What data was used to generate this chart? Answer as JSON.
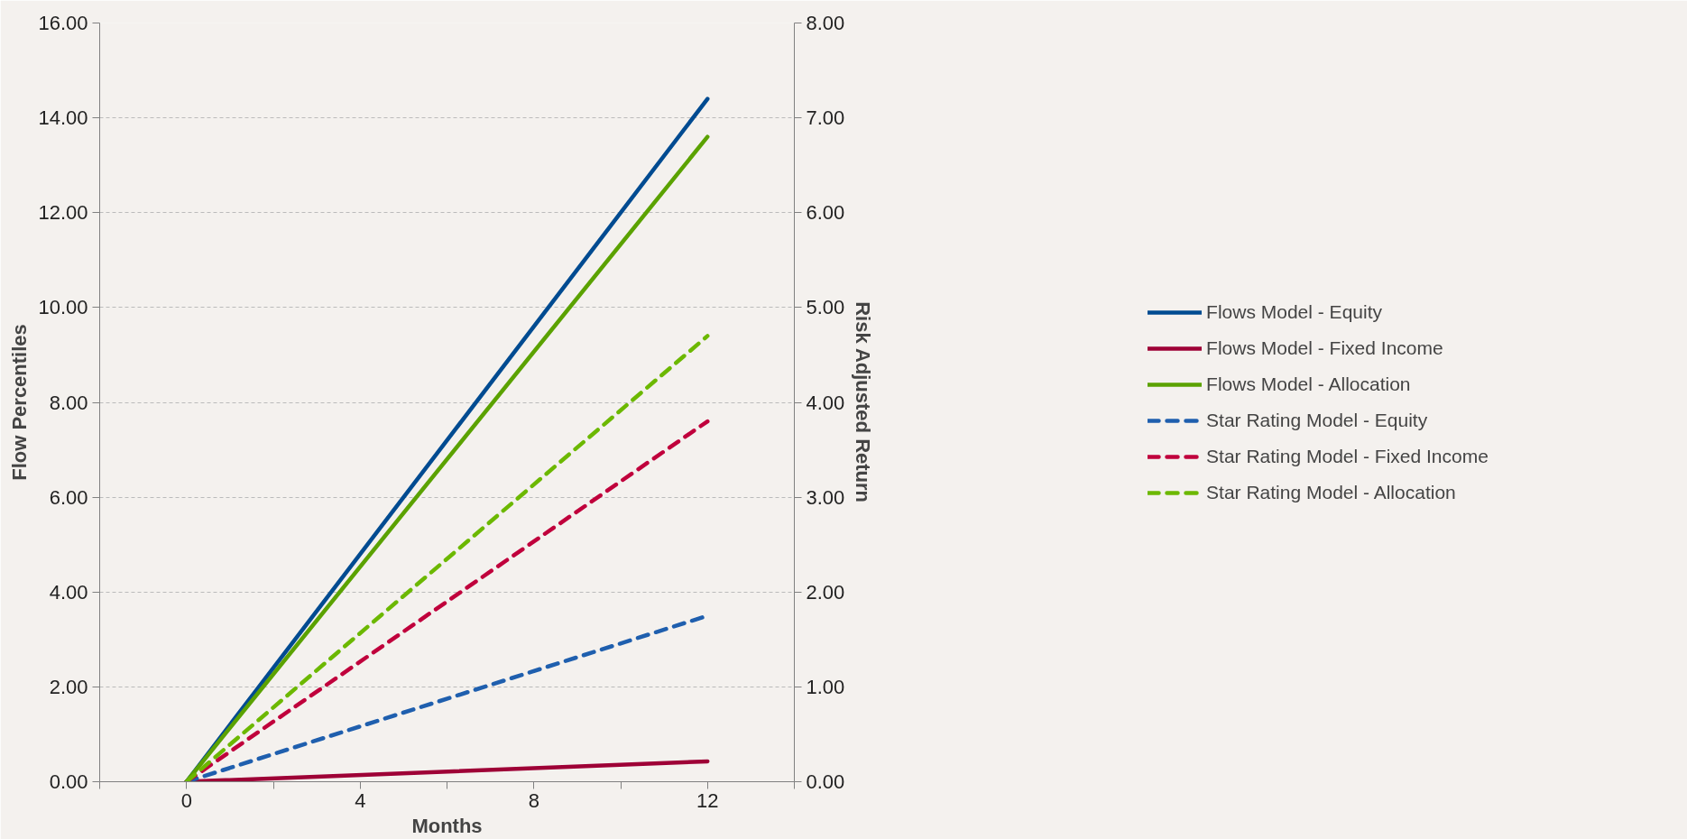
{
  "chart_data": {
    "type": "line",
    "xlabel": "Months",
    "ylabel": "Flow Percentiles",
    "y2label": "Risk Adjusted Return",
    "xlim": [
      -2,
      14
    ],
    "xticks": [
      {
        "value": -2,
        "label": null
      },
      0,
      {
        "value": 2,
        "label": null
      },
      4,
      {
        "value": 6,
        "label": null
      },
      8,
      {
        "value": 10,
        "label": null
      },
      12,
      {
        "value": 14,
        "label": null
      }
    ],
    "ylim": [
      0,
      16
    ],
    "yticks": [
      {
        "value": 0,
        "label": "0.00"
      },
      {
        "value": 2,
        "label": "2.00"
      },
      {
        "value": 4,
        "label": "4.00"
      },
      {
        "value": 6,
        "label": "6.00"
      },
      {
        "value": 8,
        "label": "8.00"
      },
      {
        "value": 10,
        "label": "10.00"
      },
      {
        "value": 12,
        "label": "12.00"
      },
      {
        "value": 14,
        "label": "14.00"
      },
      {
        "value": 16,
        "label": "16.00"
      }
    ],
    "y2lim": [
      0,
      8
    ],
    "y2ticks": [
      {
        "value": 0,
        "label": "0.00"
      },
      {
        "value": 1,
        "label": "1.00"
      },
      {
        "value": 2,
        "label": "2.00"
      },
      {
        "value": 3,
        "label": "3.00"
      },
      {
        "value": 4,
        "label": "4.00"
      },
      {
        "value": 5,
        "label": "5.00"
      },
      {
        "value": 6,
        "label": "6.00"
      },
      {
        "value": 7,
        "label": "7.00"
      },
      {
        "value": 8,
        "label": "8.00"
      }
    ],
    "x": [
      0,
      12
    ],
    "grid": "y",
    "legend": "right",
    "marker": "none",
    "series": [
      {
        "name": "Flows Model - Equity",
        "color": "#004b91",
        "values": [
          0,
          14.4
        ],
        "line_style": "solid"
      },
      {
        "name": "Flows Model - Fixed Income",
        "color": "#9e0036",
        "values": [
          0,
          0.43
        ],
        "line_style": "solid"
      },
      {
        "name": "Flows Model - Allocation",
        "color": "#5ba200",
        "values": [
          0,
          13.6
        ],
        "line_style": "solid"
      },
      {
        "name": "Star Rating Model - Equity",
        "color": "#1f5fae",
        "values": [
          0,
          1.75
        ],
        "line_style": "dashed",
        "axis": "y2"
      },
      {
        "name": "Star Rating Model - Fixed Income",
        "color": "#c0003c",
        "values": [
          0,
          3.8
        ],
        "line_style": "dashed",
        "axis": "y2"
      },
      {
        "name": "Star Rating Model - Allocation",
        "color": "#6cb800",
        "values": [
          0,
          4.7
        ],
        "line_style": "dashed",
        "axis": "y2"
      }
    ]
  }
}
